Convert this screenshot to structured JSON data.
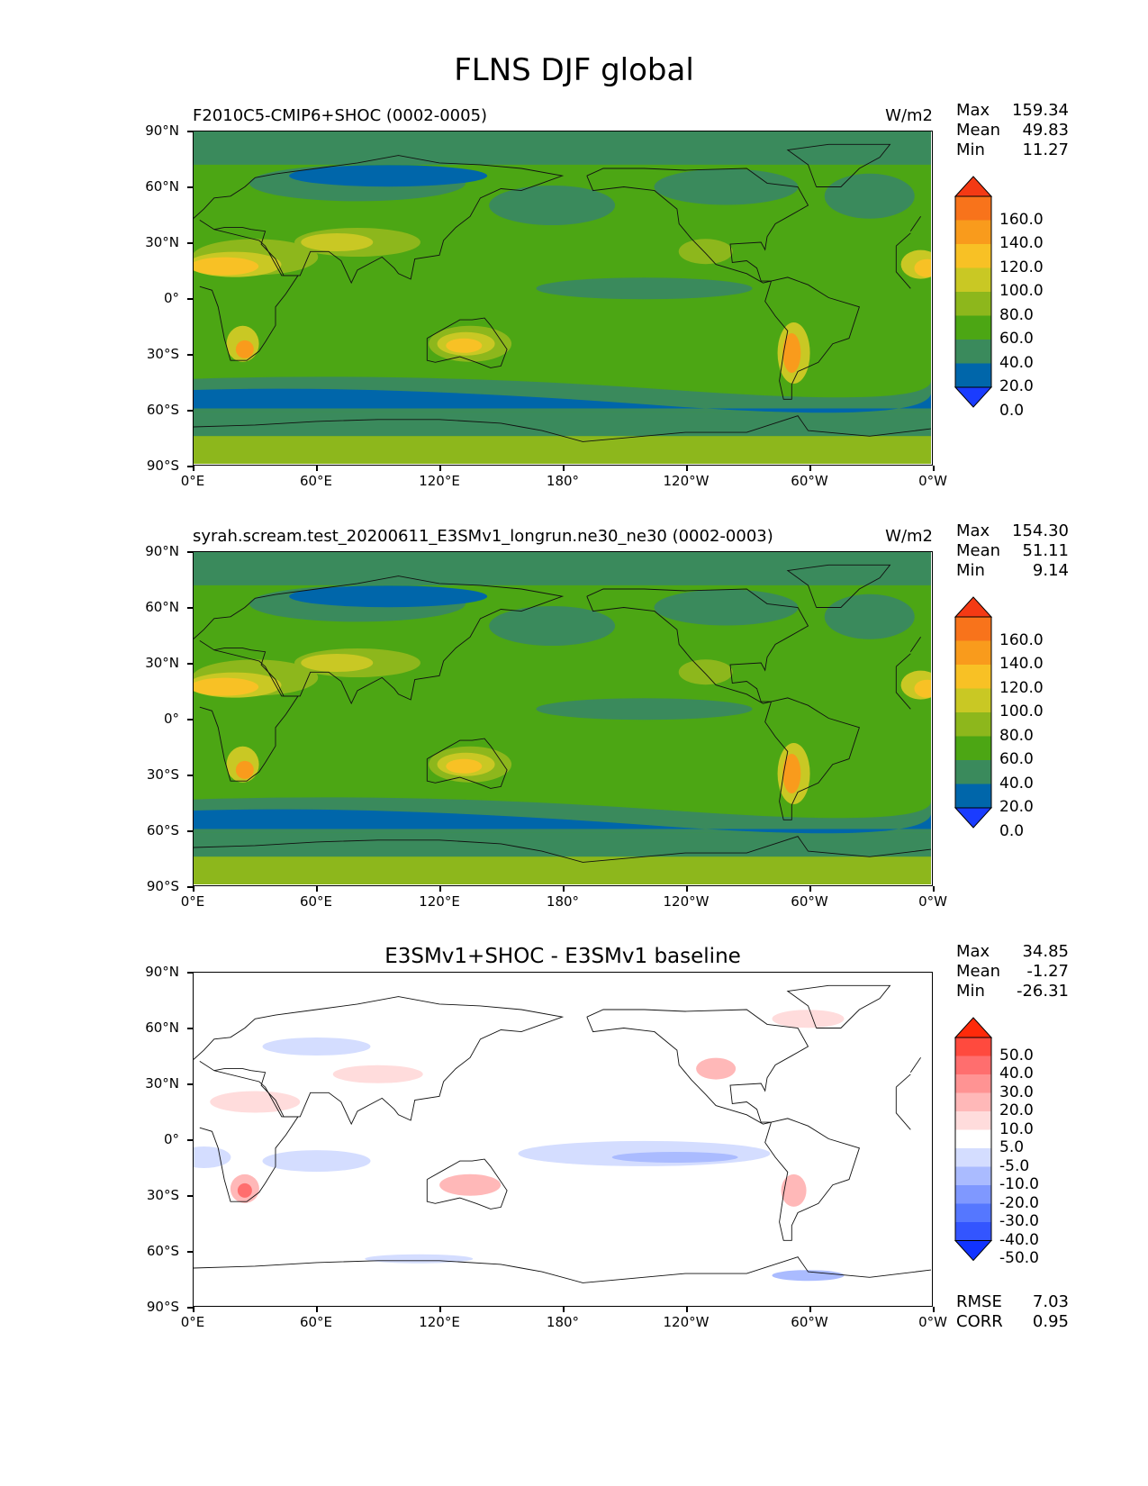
{
  "figure": {
    "title": "FLNS DJF global"
  },
  "axes": {
    "lat_ticks": [
      "90°N",
      "60°N",
      "30°N",
      "0°",
      "30°S",
      "60°S",
      "90°S"
    ],
    "lon_ticks": [
      "0°E",
      "60°E",
      "120°E",
      "180°",
      "120°W",
      "60°W",
      "0°W"
    ]
  },
  "panels": [
    {
      "title": "F2010C5-CMIP6+SHOC (0002-0005)",
      "units": "W/m2",
      "stats": [
        {
          "label": "Max",
          "value": "159.34"
        },
        {
          "label": "Mean",
          "value": "49.83"
        },
        {
          "label": "Min",
          "value": "11.27"
        }
      ]
    },
    {
      "title": "syrah.scream.test_20200611_E3SMv1_longrun.ne30_ne30 (0002-0003)",
      "units": "W/m2",
      "stats": [
        {
          "label": "Max",
          "value": "154.30"
        },
        {
          "label": "Mean",
          "value": "51.11"
        },
        {
          "label": "Min",
          "value": "9.14"
        }
      ]
    },
    {
      "title": "E3SMv1+SHOC - E3SMv1 baseline",
      "units": "",
      "stats": [
        {
          "label": "Max",
          "value": "34.85"
        },
        {
          "label": "Mean",
          "value": "-1.27"
        },
        {
          "label": "Min",
          "value": "-26.31"
        }
      ],
      "extra_stats": [
        {
          "label": "RMSE",
          "value": "7.03"
        },
        {
          "label": "CORR",
          "value": "0.95"
        }
      ]
    }
  ],
  "chart_data": [
    {
      "type": "heatmap",
      "title": "F2010C5-CMIP6+SHOC (0002-0005)",
      "variable": "FLNS",
      "season": "DJF",
      "units": "W/m2",
      "x_range": [
        0,
        360
      ],
      "y_range": [
        -90,
        90
      ],
      "colorbar": {
        "levels": [
          0.0,
          20.0,
          40.0,
          60.0,
          80.0,
          100.0,
          120.0,
          140.0,
          160.0
        ],
        "labels": [
          "160.0",
          "140.0",
          "120.0",
          "100.0",
          "80.0",
          "60.0",
          "40.0",
          "20.0",
          "0.0"
        ],
        "colors": [
          "#1a3cff",
          "#0066aa",
          "#3a8a5c",
          "#4ca614",
          "#8db71c",
          "#c9c824",
          "#f8c125",
          "#f99b1c",
          "#f8731b",
          "#f43a14"
        ]
      },
      "stats": {
        "max": 159.34,
        "mean": 49.83,
        "min": 11.27
      }
    },
    {
      "type": "heatmap",
      "title": "syrah.scream.test_20200611_E3SMv1_longrun.ne30_ne30 (0002-0003)",
      "variable": "FLNS",
      "season": "DJF",
      "units": "W/m2",
      "x_range": [
        0,
        360
      ],
      "y_range": [
        -90,
        90
      ],
      "colorbar": {
        "levels": [
          0.0,
          20.0,
          40.0,
          60.0,
          80.0,
          100.0,
          120.0,
          140.0,
          160.0
        ],
        "labels": [
          "160.0",
          "140.0",
          "120.0",
          "100.0",
          "80.0",
          "60.0",
          "40.0",
          "20.0",
          "0.0"
        ],
        "colors": [
          "#1a3cff",
          "#0066aa",
          "#3a8a5c",
          "#4ca614",
          "#8db71c",
          "#c9c824",
          "#f8c125",
          "#f99b1c",
          "#f8731b",
          "#f43a14"
        ]
      },
      "stats": {
        "max": 154.3,
        "mean": 51.11,
        "min": 9.14
      }
    },
    {
      "type": "heatmap",
      "title": "E3SMv1+SHOC - E3SMv1 baseline",
      "variable": "FLNS difference",
      "season": "DJF",
      "x_range": [
        0,
        360
      ],
      "y_range": [
        -90,
        90
      ],
      "colorbar": {
        "levels": [
          -50.0,
          -40.0,
          -30.0,
          -20.0,
          -10.0,
          -5.0,
          5.0,
          10.0,
          20.0,
          30.0,
          40.0,
          50.0
        ],
        "labels": [
          "50.0",
          "40.0",
          "30.0",
          "20.0",
          "10.0",
          "5.0",
          "-5.0",
          "-10.0",
          "-20.0",
          "-30.0",
          "-40.0",
          "-50.0"
        ],
        "colors": [
          "#1133ff",
          "#3355ff",
          "#5577ff",
          "#7f98ff",
          "#aabbff",
          "#d4ddff",
          "#ffffff",
          "#ffdcdc",
          "#ffb8b8",
          "#ff9393",
          "#ff6e6e",
          "#ff4a3e",
          "#ff2a0a"
        ]
      },
      "stats": {
        "max": 34.85,
        "mean": -1.27,
        "min": -26.31,
        "rmse": 7.03,
        "corr": 0.95
      }
    }
  ]
}
